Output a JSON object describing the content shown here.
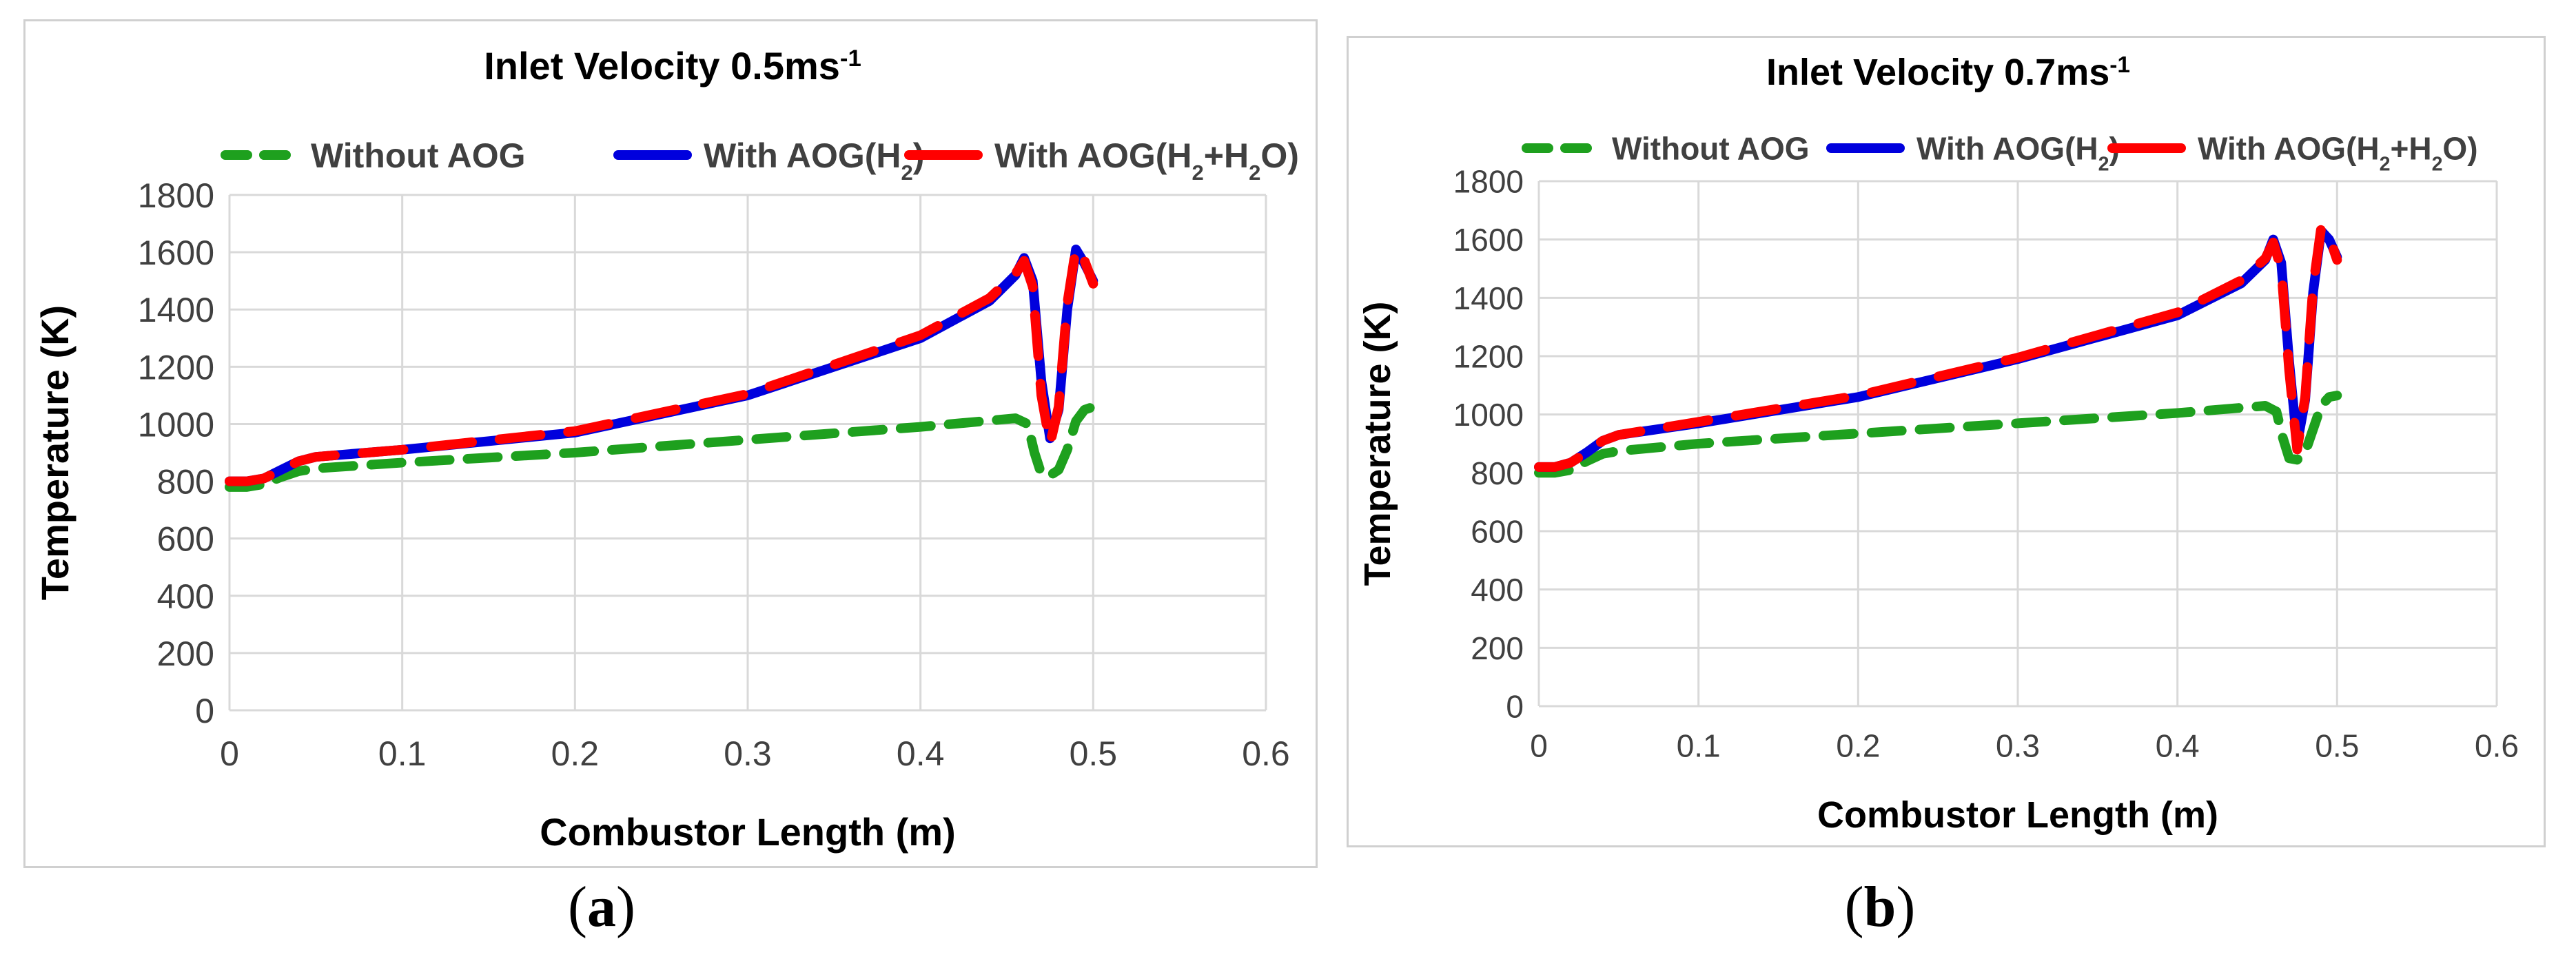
{
  "colors": {
    "without": "#1ea01e",
    "h2": "#0000dd",
    "h2h2o": "#ff0000",
    "grid": "#d9d9d9",
    "border": "#d0d0d0"
  },
  "panels": [
    {
      "caption_label": "a",
      "title_base": "Inlet Velocity 0.5ms",
      "title_sup": "-1"
    },
    {
      "caption_label": "b",
      "title_base": "Inlet Velocity 0.7ms",
      "title_sup": "-1"
    }
  ],
  "chart_data": [
    {
      "type": "line",
      "title": "Inlet Velocity 0.5ms-1",
      "xlabel": "Combustor Length (m)",
      "ylabel": "Temperature (K)",
      "xlim": [
        0,
        0.6
      ],
      "ylim": [
        0,
        1800
      ],
      "xticks": [
        0,
        0.1,
        0.2,
        0.3,
        0.4,
        0.5,
        0.6
      ],
      "xtick_labels": [
        "0",
        "0.1",
        "0.2",
        "0.3",
        "0.4",
        "0.5",
        "0.6"
      ],
      "yticks": [
        0,
        200,
        400,
        600,
        800,
        1000,
        1200,
        1400,
        1600,
        1800
      ],
      "ytick_labels": [
        "0",
        "200",
        "400",
        "600",
        "800",
        "1000",
        "1200",
        "1400",
        "1600",
        "1800"
      ],
      "legend_position": "top",
      "series": [
        {
          "name": "Without AOG",
          "style": "dashed",
          "color": "without",
          "x": [
            0,
            0.01,
            0.02,
            0.03,
            0.04,
            0.05,
            0.1,
            0.2,
            0.3,
            0.4,
            0.455,
            0.462,
            0.466,
            0.47,
            0.475,
            0.48,
            0.485,
            0.49,
            0.495,
            0.5
          ],
          "y": [
            780,
            780,
            790,
            815,
            835,
            845,
            865,
            900,
            945,
            990,
            1020,
            1000,
            900,
            825,
            820,
            840,
            910,
            1010,
            1050,
            1060
          ]
        },
        {
          "name": "With AOG(H2)",
          "legend_base": "With AOG(H",
          "legend_sub": "2",
          "legend_tail": ")",
          "style": "solid",
          "color": "h2",
          "x": [
            0,
            0.01,
            0.02,
            0.03,
            0.04,
            0.05,
            0.1,
            0.2,
            0.3,
            0.4,
            0.44,
            0.455,
            0.46,
            0.465,
            0.47,
            0.475,
            0.48,
            0.485,
            0.49,
            0.495,
            0.5
          ],
          "y": [
            800,
            800,
            810,
            840,
            870,
            885,
            910,
            970,
            1100,
            1300,
            1430,
            1520,
            1580,
            1500,
            1150,
            950,
            1050,
            1400,
            1610,
            1560,
            1500
          ]
        },
        {
          "name": "With AOG(H2+H2O)",
          "legend_base": "With AOG(H",
          "legend_sub": "2",
          "legend_mid": "+H",
          "legend_sub2": "2",
          "legend_tail": "O)",
          "style": "dashed-thick",
          "color": "h2h2o",
          "x": [
            0,
            0.01,
            0.02,
            0.03,
            0.04,
            0.05,
            0.1,
            0.2,
            0.3,
            0.4,
            0.44,
            0.455,
            0.46,
            0.465,
            0.47,
            0.475,
            0.48,
            0.485,
            0.49,
            0.495,
            0.5
          ],
          "y": [
            800,
            800,
            810,
            840,
            870,
            885,
            910,
            975,
            1105,
            1310,
            1440,
            1525,
            1570,
            1480,
            1100,
            930,
            1060,
            1420,
            1615,
            1570,
            1490
          ]
        }
      ]
    },
    {
      "type": "line",
      "title": "Inlet Velocity 0.7ms-1",
      "xlabel": "Combustor Length (m)",
      "ylabel": "Temperature (K)",
      "xlim": [
        0,
        0.6
      ],
      "ylim": [
        0,
        1800
      ],
      "xticks": [
        0,
        0.1,
        0.2,
        0.3,
        0.4,
        0.5,
        0.6
      ],
      "xtick_labels": [
        "0",
        "0.1",
        "0.2",
        "0.3",
        "0.4",
        "0.5",
        "0.6"
      ],
      "yticks": [
        0,
        200,
        400,
        600,
        800,
        1000,
        1200,
        1400,
        1600,
        1800
      ],
      "ytick_labels": [
        "0",
        "200",
        "400",
        "600",
        "800",
        "1000",
        "1200",
        "1400",
        "1600",
        "1800"
      ],
      "legend_position": "top",
      "series": [
        {
          "name": "Without AOG",
          "style": "dashed",
          "color": "without",
          "x": [
            0,
            0.01,
            0.02,
            0.03,
            0.04,
            0.05,
            0.1,
            0.2,
            0.3,
            0.4,
            0.455,
            0.462,
            0.466,
            0.47,
            0.475,
            0.48,
            0.485,
            0.49,
            0.495,
            0.5
          ],
          "y": [
            800,
            800,
            810,
            840,
            865,
            875,
            900,
            935,
            970,
            1005,
            1030,
            1010,
            920,
            850,
            845,
            870,
            950,
            1030,
            1060,
            1065
          ]
        },
        {
          "name": "With AOG(H2)",
          "legend_base": "With AOG(H",
          "legend_sub": "2",
          "legend_tail": ")",
          "style": "solid",
          "color": "h2",
          "x": [
            0,
            0.01,
            0.02,
            0.03,
            0.04,
            0.05,
            0.1,
            0.2,
            0.3,
            0.4,
            0.44,
            0.455,
            0.46,
            0.465,
            0.47,
            0.475,
            0.48,
            0.485,
            0.49,
            0.495,
            0.5
          ],
          "y": [
            820,
            820,
            835,
            870,
            910,
            930,
            970,
            1060,
            1190,
            1340,
            1450,
            1530,
            1600,
            1520,
            1180,
            900,
            1050,
            1420,
            1630,
            1600,
            1540
          ]
        },
        {
          "name": "With AOG(H2+H2O)",
          "legend_base": "With AOG(H",
          "legend_sub": "2",
          "legend_mid": "+H",
          "legend_sub2": "2",
          "legend_tail": "O)",
          "style": "dashed-thick",
          "color": "h2h2o",
          "x": [
            0,
            0.01,
            0.02,
            0.03,
            0.04,
            0.05,
            0.1,
            0.2,
            0.3,
            0.4,
            0.44,
            0.455,
            0.46,
            0.465,
            0.47,
            0.475,
            0.48,
            0.485,
            0.49,
            0.495,
            0.5
          ],
          "y": [
            820,
            820,
            835,
            870,
            910,
            930,
            975,
            1065,
            1195,
            1350,
            1460,
            1535,
            1590,
            1500,
            1150,
            880,
            1060,
            1440,
            1640,
            1610,
            1530
          ]
        }
      ]
    }
  ]
}
